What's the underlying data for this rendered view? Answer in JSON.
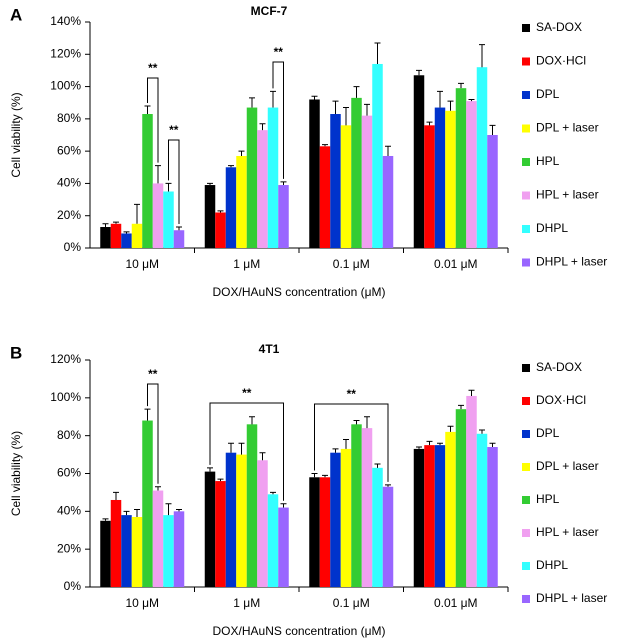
{
  "chart_data": [
    {
      "type": "bar",
      "panel_label": "A",
      "title": "MCF-7",
      "x_label": "DOX/HAuNS  concentration (μM)",
      "y_label": "Cell viability (%)",
      "categories": [
        "10 μM",
        "1 μM",
        "0.1 μM",
        "0.01 μM"
      ],
      "series": [
        {
          "name": "SA-DOX",
          "color": "#000000",
          "values": [
            13,
            39,
            92,
            107
          ],
          "errors": [
            2,
            1,
            2,
            3
          ]
        },
        {
          "name": "DOX·HCl",
          "color": "#ff0000",
          "values": [
            15,
            22,
            63,
            76
          ],
          "errors": [
            1,
            1,
            1,
            2
          ]
        },
        {
          "name": "DPL",
          "color": "#0033cc",
          "values": [
            9,
            50,
            83,
            87
          ],
          "errors": [
            1,
            1,
            8,
            10
          ]
        },
        {
          "name": "DPL + laser",
          "color": "#ffff00",
          "values": [
            15,
            57,
            76,
            85
          ],
          "errors": [
            12,
            3,
            11,
            6
          ]
        },
        {
          "name": "HPL",
          "color": "#33cc33",
          "values": [
            83,
            87,
            93,
            99
          ],
          "errors": [
            5,
            6,
            7,
            3
          ]
        },
        {
          "name": "HPL + laser",
          "color": "#f0a0f0",
          "values": [
            40,
            73,
            82,
            91
          ],
          "errors": [
            11,
            4,
            7,
            1
          ]
        },
        {
          "name": "DHPL",
          "color": "#33ffff",
          "values": [
            35,
            87,
            114,
            112
          ],
          "errors": [
            5,
            10,
            13,
            14
          ]
        },
        {
          "name": "DHPL + laser",
          "color": "#9966ff",
          "values": [
            11,
            39,
            57,
            70
          ],
          "errors": [
            2,
            2,
            6,
            6
          ]
        }
      ],
      "ylim": [
        0,
        140
      ],
      "yticks": [
        {
          "value": 0,
          "label": "0%"
        },
        {
          "value": 20,
          "label": "20%"
        },
        {
          "value": 40,
          "label": "40%"
        },
        {
          "value": 60,
          "label": "60%"
        },
        {
          "value": 80,
          "label": "80%"
        },
        {
          "value": 100,
          "label": "100%"
        },
        {
          "value": 120,
          "label": "120%"
        },
        {
          "value": 140,
          "label": "140%"
        }
      ],
      "annotations": [
        "**",
        "**",
        "**"
      ]
    },
    {
      "type": "bar",
      "panel_label": "B",
      "title": "4T1",
      "x_label": "DOX/HAuNS  concentration (μM)",
      "y_label": "Cell viability (%)",
      "categories": [
        "10 μM",
        "1 μM",
        "0.1 μM",
        "0.01 μM"
      ],
      "series": [
        {
          "name": "SA-DOX",
          "color": "#000000",
          "values": [
            35,
            61,
            58,
            73
          ],
          "errors": [
            1,
            2,
            2,
            1
          ]
        },
        {
          "name": "DOX·HCl",
          "color": "#ff0000",
          "values": [
            46,
            56,
            58,
            75
          ],
          "errors": [
            4,
            1,
            1,
            2
          ]
        },
        {
          "name": "DPL",
          "color": "#0033cc",
          "values": [
            38,
            71,
            71,
            75
          ],
          "errors": [
            2,
            5,
            2,
            1
          ]
        },
        {
          "name": "DPL + laser",
          "color": "#ffff00",
          "values": [
            37,
            70,
            73,
            82
          ],
          "errors": [
            4,
            6,
            5,
            3
          ]
        },
        {
          "name": "HPL",
          "color": "#33cc33",
          "values": [
            88,
            86,
            86,
            94
          ],
          "errors": [
            6,
            4,
            2,
            2
          ]
        },
        {
          "name": "HPL + laser",
          "color": "#f0a0f0",
          "values": [
            51,
            67,
            84,
            101
          ],
          "errors": [
            2,
            4,
            6,
            3
          ]
        },
        {
          "name": "DHPL",
          "color": "#33ffff",
          "values": [
            38,
            49,
            63,
            81
          ],
          "errors": [
            6,
            1,
            2,
            2
          ]
        },
        {
          "name": "DHPL + laser",
          "color": "#9966ff",
          "values": [
            40,
            42,
            53,
            74
          ],
          "errors": [
            1,
            2,
            1,
            2
          ]
        }
      ],
      "ylim": [
        0,
        120
      ],
      "yticks": [
        {
          "value": 0,
          "label": "0%"
        },
        {
          "value": 20,
          "label": "20%"
        },
        {
          "value": 40,
          "label": "40%"
        },
        {
          "value": 60,
          "label": "60%"
        },
        {
          "value": 80,
          "label": "80%"
        },
        {
          "value": 100,
          "label": "100%"
        },
        {
          "value": 120,
          "label": "120%"
        }
      ],
      "annotations": [
        "**",
        "**",
        "**"
      ]
    }
  ]
}
